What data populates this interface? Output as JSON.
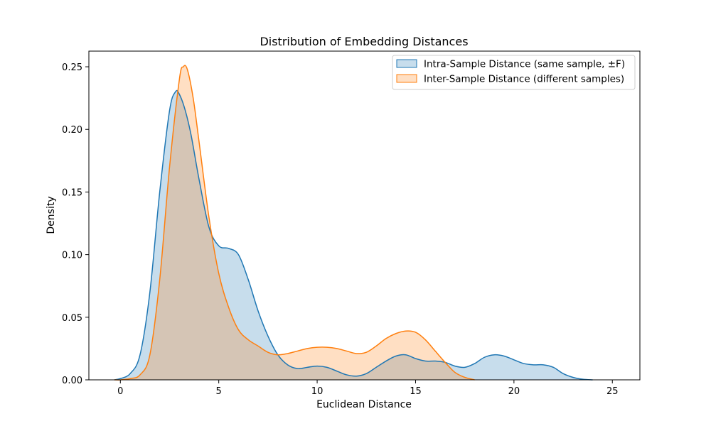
{
  "chart_data": {
    "type": "area",
    "title": "Distribution of Embedding Distances",
    "xlabel": "Euclidean Distance",
    "ylabel": "Density",
    "xlim": [
      -1.6,
      26.4
    ],
    "ylim": [
      0,
      0.2625
    ],
    "x_ticks": [
      0,
      5,
      10,
      15,
      20,
      25
    ],
    "y_ticks": [
      0.0,
      0.05,
      0.1,
      0.15,
      0.2,
      0.25
    ],
    "x_tick_labels": [
      "0",
      "5",
      "10",
      "15",
      "20",
      "25"
    ],
    "y_tick_labels": [
      "0.00",
      "0.05",
      "0.10",
      "0.15",
      "0.20",
      "0.25"
    ],
    "legend_position": "top-right",
    "grid": false,
    "series": [
      {
        "name": "Intra-Sample Distance (same sample, ±F)",
        "color": "#1f77b4",
        "fill": "#1f77b4",
        "x": [
          -0.3,
          0.0,
          0.5,
          1.0,
          1.5,
          2.0,
          2.5,
          2.8,
          3.0,
          3.3,
          3.6,
          4.0,
          4.5,
          5.0,
          5.5,
          6.0,
          6.5,
          7.0,
          7.5,
          8.0,
          8.5,
          9.0,
          9.5,
          10.0,
          10.5,
          11.0,
          11.5,
          12.0,
          12.5,
          13.0,
          13.5,
          14.0,
          14.5,
          15.0,
          15.5,
          16.0,
          16.5,
          17.0,
          17.5,
          18.0,
          18.5,
          19.0,
          19.5,
          20.0,
          20.5,
          21.0,
          21.5,
          22.0,
          22.5,
          23.0,
          23.5,
          24.0
        ],
        "values": [
          0.0,
          0.001,
          0.005,
          0.02,
          0.07,
          0.15,
          0.215,
          0.23,
          0.228,
          0.215,
          0.195,
          0.16,
          0.122,
          0.107,
          0.105,
          0.1,
          0.08,
          0.055,
          0.035,
          0.02,
          0.012,
          0.009,
          0.01,
          0.011,
          0.01,
          0.007,
          0.004,
          0.003,
          0.005,
          0.01,
          0.015,
          0.019,
          0.02,
          0.017,
          0.015,
          0.015,
          0.014,
          0.011,
          0.01,
          0.013,
          0.018,
          0.02,
          0.019,
          0.016,
          0.013,
          0.012,
          0.012,
          0.01,
          0.005,
          0.002,
          0.0005,
          0.0
        ]
      },
      {
        "name": "Inter-Sample Distance (different samples)",
        "color": "#ff7f0e",
        "fill": "#ff7f0e",
        "x": [
          -0.3,
          0.0,
          0.5,
          1.0,
          1.5,
          2.0,
          2.5,
          3.0,
          3.2,
          3.4,
          3.7,
          4.0,
          4.5,
          5.0,
          5.5,
          6.0,
          6.5,
          7.0,
          7.5,
          8.0,
          8.5,
          9.0,
          9.5,
          10.0,
          10.5,
          11.0,
          11.5,
          12.0,
          12.5,
          13.0,
          13.5,
          14.0,
          14.5,
          15.0,
          15.5,
          16.0,
          16.5,
          17.0,
          17.5,
          18.0
        ],
        "values": [
          0.0,
          0.0,
          0.001,
          0.004,
          0.02,
          0.08,
          0.17,
          0.24,
          0.25,
          0.248,
          0.225,
          0.19,
          0.13,
          0.085,
          0.058,
          0.04,
          0.032,
          0.027,
          0.022,
          0.02,
          0.021,
          0.023,
          0.025,
          0.026,
          0.026,
          0.025,
          0.023,
          0.021,
          0.022,
          0.027,
          0.033,
          0.037,
          0.039,
          0.038,
          0.032,
          0.023,
          0.014,
          0.006,
          0.002,
          0.0
        ]
      }
    ]
  }
}
